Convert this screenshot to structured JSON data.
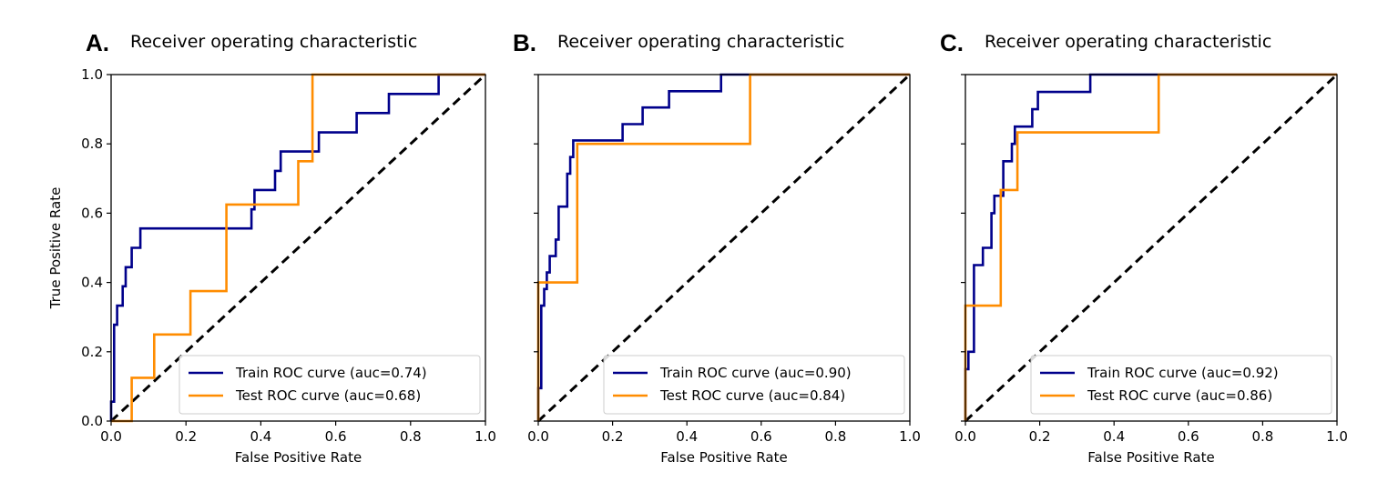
{
  "figure": {
    "background": "#ffffff"
  },
  "chart_data": [
    {
      "panel_label": "A.",
      "type": "line",
      "title": "Receiver operating characteristic",
      "xlabel": "False Positive Rate",
      "ylabel": "True Positive Rate",
      "xlim": [
        0.0,
        1.0
      ],
      "ylim": [
        0.0,
        1.0
      ],
      "xticks": [
        "0.0",
        "0.2",
        "0.4",
        "0.6",
        "0.8",
        "1.0"
      ],
      "yticks": [
        "0.0",
        "0.2",
        "0.4",
        "0.6",
        "0.8",
        "1.0"
      ],
      "show_ytick_labels": true,
      "legend_position": "lower-right",
      "series": [
        {
          "name": "Train ROC curve (auc=0.74)",
          "color": "#00008b",
          "points": [
            [
              0.0,
              0.0
            ],
            [
              0.0,
              0.056
            ],
            [
              0.008,
              0.056
            ],
            [
              0.008,
              0.278
            ],
            [
              0.016,
              0.278
            ],
            [
              0.016,
              0.333
            ],
            [
              0.031,
              0.333
            ],
            [
              0.031,
              0.389
            ],
            [
              0.039,
              0.389
            ],
            [
              0.039,
              0.444
            ],
            [
              0.055,
              0.444
            ],
            [
              0.055,
              0.5
            ],
            [
              0.078,
              0.5
            ],
            [
              0.078,
              0.556
            ],
            [
              0.375,
              0.556
            ],
            [
              0.375,
              0.611
            ],
            [
              0.383,
              0.611
            ],
            [
              0.383,
              0.667
            ],
            [
              0.438,
              0.667
            ],
            [
              0.438,
              0.722
            ],
            [
              0.453,
              0.722
            ],
            [
              0.453,
              0.778
            ],
            [
              0.555,
              0.778
            ],
            [
              0.555,
              0.833
            ],
            [
              0.656,
              0.833
            ],
            [
              0.656,
              0.889
            ],
            [
              0.742,
              0.889
            ],
            [
              0.742,
              0.944
            ],
            [
              0.875,
              0.944
            ],
            [
              0.875,
              1.0
            ],
            [
              1.0,
              1.0
            ]
          ]
        },
        {
          "name": "Test ROC curve (auc=0.68)",
          "color": "#ff8c00",
          "points": [
            [
              0.0,
              0.0
            ],
            [
              0.055,
              0.0
            ],
            [
              0.055,
              0.125
            ],
            [
              0.115,
              0.125
            ],
            [
              0.115,
              0.25
            ],
            [
              0.212,
              0.25
            ],
            [
              0.212,
              0.375
            ],
            [
              0.308,
              0.375
            ],
            [
              0.308,
              0.625
            ],
            [
              0.5,
              0.625
            ],
            [
              0.5,
              0.75
            ],
            [
              0.538,
              0.75
            ],
            [
              0.538,
              1.0
            ],
            [
              1.0,
              1.0
            ]
          ]
        }
      ],
      "diagonal": {
        "color": "#000000",
        "dash": "dashed"
      }
    },
    {
      "panel_label": "B.",
      "type": "line",
      "title": "Receiver operating characteristic",
      "xlabel": "False Positive Rate",
      "ylabel": "",
      "xlim": [
        0.0,
        1.0
      ],
      "ylim": [
        0.0,
        1.0
      ],
      "xticks": [
        "0.0",
        "0.2",
        "0.4",
        "0.6",
        "0.8",
        "1.0"
      ],
      "yticks": [
        "0.0",
        "0.2",
        "0.4",
        "0.6",
        "0.8",
        "1.0"
      ],
      "show_ytick_labels": false,
      "legend_position": "lower-right",
      "series": [
        {
          "name": "Train ROC curve (auc=0.90)",
          "color": "#00008b",
          "points": [
            [
              0.0,
              0.0
            ],
            [
              0.0,
              0.095
            ],
            [
              0.008,
              0.095
            ],
            [
              0.008,
              0.333
            ],
            [
              0.016,
              0.333
            ],
            [
              0.016,
              0.381
            ],
            [
              0.023,
              0.381
            ],
            [
              0.023,
              0.429
            ],
            [
              0.031,
              0.429
            ],
            [
              0.031,
              0.476
            ],
            [
              0.047,
              0.476
            ],
            [
              0.047,
              0.524
            ],
            [
              0.055,
              0.524
            ],
            [
              0.055,
              0.619
            ],
            [
              0.078,
              0.619
            ],
            [
              0.078,
              0.714
            ],
            [
              0.086,
              0.714
            ],
            [
              0.086,
              0.762
            ],
            [
              0.094,
              0.762
            ],
            [
              0.094,
              0.81
            ],
            [
              0.227,
              0.81
            ],
            [
              0.227,
              0.857
            ],
            [
              0.281,
              0.857
            ],
            [
              0.281,
              0.905
            ],
            [
              0.352,
              0.905
            ],
            [
              0.352,
              0.952
            ],
            [
              0.492,
              0.952
            ],
            [
              0.492,
              1.0
            ],
            [
              1.0,
              1.0
            ]
          ]
        },
        {
          "name": "Test ROC curve (auc=0.84)",
          "color": "#ff8c00",
          "points": [
            [
              0.0,
              0.0
            ],
            [
              0.0,
              0.4
            ],
            [
              0.105,
              0.4
            ],
            [
              0.105,
              0.8
            ],
            [
              0.57,
              0.8
            ],
            [
              0.57,
              1.0
            ],
            [
              1.0,
              1.0
            ]
          ]
        }
      ],
      "diagonal": {
        "color": "#000000",
        "dash": "dashed"
      }
    },
    {
      "panel_label": "C.",
      "type": "line",
      "title": "Receiver operating characteristic",
      "xlabel": "False Positive Rate",
      "ylabel": "",
      "xlim": [
        0.0,
        1.0
      ],
      "ylim": [
        0.0,
        1.0
      ],
      "xticks": [
        "0.0",
        "0.2",
        "0.4",
        "0.6",
        "0.8",
        "1.0"
      ],
      "yticks": [
        "0.0",
        "0.2",
        "0.4",
        "0.6",
        "0.8",
        "1.0"
      ],
      "show_ytick_labels": false,
      "legend_position": "lower-right",
      "series": [
        {
          "name": "Train ROC curve (auc=0.92)",
          "color": "#00008b",
          "points": [
            [
              0.0,
              0.0
            ],
            [
              0.0,
              0.15
            ],
            [
              0.008,
              0.15
            ],
            [
              0.008,
              0.2
            ],
            [
              0.023,
              0.2
            ],
            [
              0.023,
              0.45
            ],
            [
              0.047,
              0.45
            ],
            [
              0.047,
              0.5
            ],
            [
              0.07,
              0.5
            ],
            [
              0.07,
              0.6
            ],
            [
              0.078,
              0.6
            ],
            [
              0.078,
              0.65
            ],
            [
              0.102,
              0.65
            ],
            [
              0.102,
              0.75
            ],
            [
              0.125,
              0.75
            ],
            [
              0.125,
              0.8
            ],
            [
              0.133,
              0.8
            ],
            [
              0.133,
              0.85
            ],
            [
              0.18,
              0.85
            ],
            [
              0.18,
              0.9
            ],
            [
              0.195,
              0.9
            ],
            [
              0.195,
              0.95
            ],
            [
              0.336,
              0.95
            ],
            [
              0.336,
              1.0
            ],
            [
              1.0,
              1.0
            ]
          ]
        },
        {
          "name": "Test ROC curve (auc=0.86)",
          "color": "#ff8c00",
          "points": [
            [
              0.0,
              0.0
            ],
            [
              0.0,
              0.333
            ],
            [
              0.095,
              0.333
            ],
            [
              0.095,
              0.667
            ],
            [
              0.14,
              0.667
            ],
            [
              0.14,
              0.833
            ],
            [
              0.52,
              0.833
            ],
            [
              0.52,
              1.0
            ],
            [
              1.0,
              1.0
            ]
          ]
        }
      ],
      "diagonal": {
        "color": "#000000",
        "dash": "dashed"
      }
    }
  ]
}
